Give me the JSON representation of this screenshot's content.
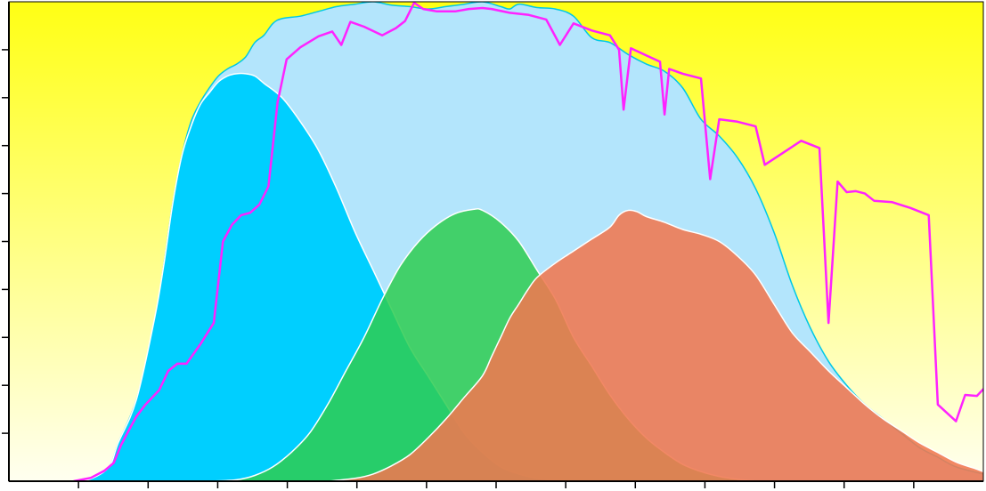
{
  "chart_data": {
    "type": "area",
    "title": "",
    "xlabel": "",
    "ylabel": "",
    "xlim": [
      0,
      107
    ],
    "ylim": [
      0,
      100
    ],
    "x_tick_count": 14,
    "y_tick_count": 10,
    "grid": false,
    "legend": "none",
    "background_gradient": [
      "#ffff14",
      "#fffff0"
    ],
    "series": [
      {
        "kind": "area",
        "color": "#b3e5fc",
        "stroke": "#00c8e6",
        "points": [
          [
            7.1,
            0
          ],
          [
            9,
            0.5
          ],
          [
            11,
            3
          ],
          [
            12,
            8
          ],
          [
            14,
            17
          ],
          [
            16,
            33
          ],
          [
            17,
            45
          ],
          [
            18,
            58
          ],
          [
            19,
            68
          ],
          [
            20,
            75
          ],
          [
            21,
            79
          ],
          [
            22,
            82
          ],
          [
            23,
            84.5
          ],
          [
            24,
            86
          ],
          [
            25,
            87
          ],
          [
            26,
            88.5
          ],
          [
            27,
            91.5
          ],
          [
            28,
            93
          ],
          [
            29,
            95.5
          ],
          [
            30,
            96.5
          ],
          [
            32,
            97
          ],
          [
            34,
            98
          ],
          [
            36,
            99
          ],
          [
            38,
            99.5
          ],
          [
            40,
            100
          ],
          [
            42,
            99.3
          ],
          [
            44,
            99
          ],
          [
            46,
            98.5
          ],
          [
            48,
            99
          ],
          [
            50,
            99.5
          ],
          [
            52,
            100
          ],
          [
            54,
            99
          ],
          [
            55,
            98.5
          ],
          [
            56,
            99.5
          ],
          [
            58,
            98.8
          ],
          [
            60,
            98.5
          ],
          [
            62,
            97
          ],
          [
            64,
            92.5
          ],
          [
            66,
            91.5
          ],
          [
            68,
            89
          ],
          [
            70,
            87
          ],
          [
            72,
            85.5
          ],
          [
            74,
            82
          ],
          [
            76,
            75.5
          ],
          [
            78,
            72
          ],
          [
            80,
            67.5
          ],
          [
            82,
            61
          ],
          [
            84,
            52
          ],
          [
            86,
            41
          ],
          [
            88,
            32
          ],
          [
            90,
            25
          ],
          [
            92,
            20
          ],
          [
            94,
            16
          ],
          [
            96,
            13
          ],
          [
            98,
            10
          ],
          [
            100,
            7
          ],
          [
            102,
            5
          ],
          [
            104,
            3
          ],
          [
            107,
            1.5
          ]
        ]
      },
      {
        "kind": "area",
        "color": "#00cfff",
        "stroke": "#ffffff",
        "points": [
          [
            7.1,
            0
          ],
          [
            9,
            0.5
          ],
          [
            11,
            3
          ],
          [
            12,
            8
          ],
          [
            14,
            17
          ],
          [
            16,
            34
          ],
          [
            17,
            45
          ],
          [
            18,
            58
          ],
          [
            19,
            68
          ],
          [
            20,
            74
          ],
          [
            21,
            78.5
          ],
          [
            22,
            81
          ],
          [
            23,
            83.3
          ],
          [
            24,
            84.5
          ],
          [
            25,
            85
          ],
          [
            26,
            85
          ],
          [
            27,
            84.5
          ],
          [
            28,
            83
          ],
          [
            30,
            80
          ],
          [
            32,
            75
          ],
          [
            34,
            69
          ],
          [
            36,
            61
          ],
          [
            38,
            52
          ],
          [
            40,
            44
          ],
          [
            42,
            36
          ],
          [
            44,
            28
          ],
          [
            46,
            22
          ],
          [
            48,
            16
          ],
          [
            50,
            10
          ],
          [
            52,
            6
          ],
          [
            54,
            3
          ],
          [
            56,
            1.5
          ],
          [
            58,
            0.6
          ],
          [
            60,
            0.2
          ],
          [
            62,
            0
          ]
        ]
      },
      {
        "kind": "area",
        "color": "#2ecc50",
        "stroke": "#ffffff",
        "opacity": 0.85,
        "points": [
          [
            22,
            0
          ],
          [
            25,
            0.3
          ],
          [
            27,
            1.2
          ],
          [
            29,
            3
          ],
          [
            31,
            6
          ],
          [
            33,
            10
          ],
          [
            35,
            16
          ],
          [
            37,
            23
          ],
          [
            39,
            30
          ],
          [
            41,
            38
          ],
          [
            43,
            45
          ],
          [
            45,
            50
          ],
          [
            47,
            53.5
          ],
          [
            49,
            55.8
          ],
          [
            51,
            56.7
          ],
          [
            52,
            56.5
          ],
          [
            54,
            54
          ],
          [
            56,
            50
          ],
          [
            58,
            44
          ],
          [
            60,
            38
          ],
          [
            62,
            30
          ],
          [
            64,
            24
          ],
          [
            66,
            18
          ],
          [
            68,
            13
          ],
          [
            70,
            9
          ],
          [
            72,
            6
          ],
          [
            74,
            3.5
          ],
          [
            76,
            2
          ],
          [
            78,
            1
          ],
          [
            80,
            0.4
          ],
          [
            82,
            0
          ]
        ]
      },
      {
        "kind": "area",
        "color": "#f07850",
        "stroke": "#ffffff",
        "opacity": 0.88,
        "points": [
          [
            35,
            0
          ],
          [
            38,
            0.6
          ],
          [
            40,
            1.5
          ],
          [
            42,
            3.2
          ],
          [
            44,
            5.5
          ],
          [
            46,
            9
          ],
          [
            48,
            13
          ],
          [
            50,
            17.5
          ],
          [
            52,
            22
          ],
          [
            53,
            26
          ],
          [
            54,
            30
          ],
          [
            55,
            34
          ],
          [
            56,
            37
          ],
          [
            57,
            40
          ],
          [
            58,
            42.5
          ],
          [
            60,
            45.5
          ],
          [
            62,
            48
          ],
          [
            64,
            50.5
          ],
          [
            66,
            53
          ],
          [
            67,
            55.5
          ],
          [
            68,
            56.5
          ],
          [
            69,
            56.2
          ],
          [
            70,
            55.2
          ],
          [
            72,
            54
          ],
          [
            74,
            52.5
          ],
          [
            76,
            51.5
          ],
          [
            78,
            50
          ],
          [
            80,
            47
          ],
          [
            82,
            43
          ],
          [
            84,
            37
          ],
          [
            86,
            31
          ],
          [
            88,
            27
          ],
          [
            90,
            23
          ],
          [
            92,
            19.5
          ],
          [
            94,
            16
          ],
          [
            96,
            13
          ],
          [
            98,
            10.5
          ],
          [
            100,
            8
          ],
          [
            102,
            6
          ],
          [
            104,
            4
          ],
          [
            106,
            2.7
          ],
          [
            107,
            2
          ]
        ]
      },
      {
        "kind": "line",
        "color": "#ff22ff",
        "points": [
          [
            7.1,
            0
          ],
          [
            9,
            0.7
          ],
          [
            10.5,
            2.2
          ],
          [
            11.5,
            3.8
          ],
          [
            12.3,
            7.5
          ],
          [
            13,
            10
          ],
          [
            14,
            13.5
          ],
          [
            15,
            16
          ],
          [
            16.5,
            19
          ],
          [
            17.5,
            23
          ],
          [
            18.5,
            24.5
          ],
          [
            19.5,
            24.5
          ],
          [
            21,
            28.5
          ],
          [
            22.5,
            33
          ],
          [
            23.5,
            50
          ],
          [
            24.5,
            53.5
          ],
          [
            25.5,
            55.5
          ],
          [
            26.5,
            56
          ],
          [
            27.5,
            57.7
          ],
          [
            28.5,
            61.5
          ],
          [
            29.5,
            79
          ],
          [
            30.5,
            88
          ],
          [
            32,
            90.5
          ],
          [
            34,
            92.8
          ],
          [
            35.5,
            93.8
          ],
          [
            36.5,
            91
          ],
          [
            37.5,
            95.8
          ],
          [
            39,
            94.8
          ],
          [
            41,
            93
          ],
          [
            42.5,
            94.5
          ],
          [
            43.5,
            96
          ],
          [
            44.5,
            99.8
          ],
          [
            45.5,
            98.5
          ],
          [
            47,
            98
          ],
          [
            49,
            98
          ],
          [
            50.5,
            98.5
          ],
          [
            52,
            98.7
          ],
          [
            53,
            98.5
          ],
          [
            55,
            97.7
          ],
          [
            57,
            97.3
          ],
          [
            59,
            96.3
          ],
          [
            60.5,
            91
          ],
          [
            62,
            95.5
          ],
          [
            64,
            94
          ],
          [
            66,
            93
          ],
          [
            67,
            90
          ],
          [
            67.5,
            77.5
          ],
          [
            68.3,
            90.3
          ],
          [
            70,
            88.8
          ],
          [
            71.5,
            87.5
          ],
          [
            72,
            76.5
          ],
          [
            72.5,
            86
          ],
          [
            74,
            85
          ],
          [
            76,
            84
          ],
          [
            77,
            63
          ],
          [
            78,
            75.5
          ],
          [
            80,
            75
          ],
          [
            82,
            74
          ],
          [
            83,
            66
          ],
          [
            85,
            68.5
          ],
          [
            87,
            71
          ],
          [
            89,
            69.5
          ],
          [
            90,
            33
          ],
          [
            91,
            62.5
          ],
          [
            92,
            60.3
          ],
          [
            93,
            60.5
          ],
          [
            94,
            60
          ],
          [
            95,
            58.5
          ],
          [
            97,
            58.2
          ],
          [
            99,
            57
          ],
          [
            101,
            55.5
          ],
          [
            102,
            16
          ],
          [
            104,
            12.5
          ],
          [
            105,
            18
          ],
          [
            106.3,
            17.8
          ],
          [
            108,
            21.2
          ],
          [
            109,
            23.5
          ],
          [
            110.2,
            40
          ]
        ]
      }
    ]
  }
}
